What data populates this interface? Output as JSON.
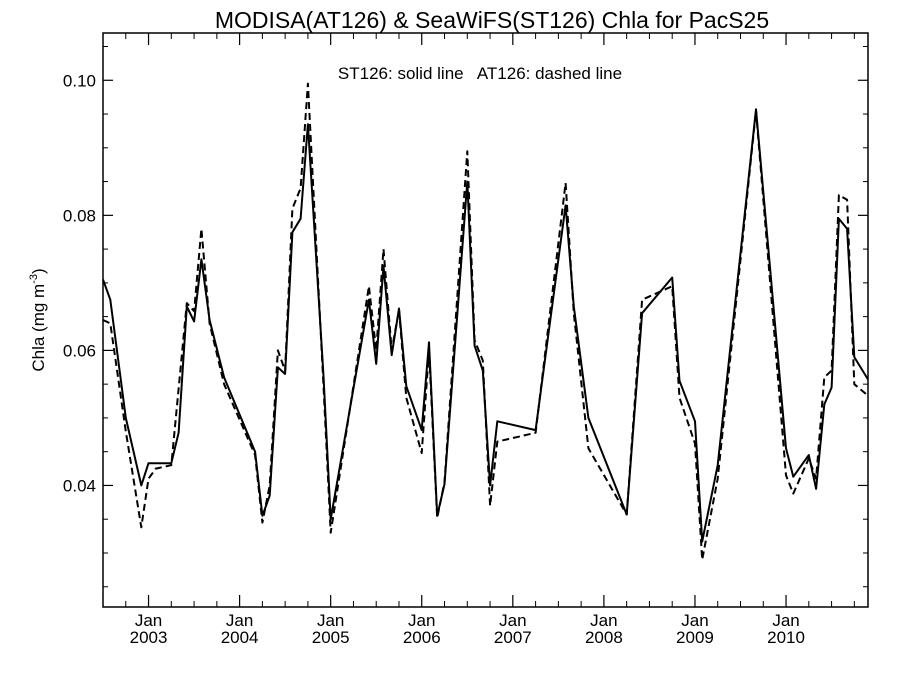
{
  "chart_data": {
    "type": "line",
    "title": "MODISA(AT126) & SeaWiFS(ST126)  Chla for PacS25",
    "annotation": "ST126: solid line   AT126: dashed line",
    "ylabel": "Chla (mg m",
    "ylabel_sup": "-3",
    "ylabel_close": ")",
    "xlabel": "",
    "xlim": [
      2002.5,
      2010.9
    ],
    "ylim": [
      0.022,
      0.107
    ],
    "grid": false,
    "legend": "none",
    "yticks": [
      0.04,
      0.06,
      0.08,
      0.1
    ],
    "ytick_labels": [
      "0.04",
      "0.06",
      "0.08",
      "0.10"
    ],
    "xticks": [
      {
        "x": 2003.0,
        "top": "Jan",
        "bottom": "2003"
      },
      {
        "x": 2004.0,
        "top": "Jan",
        "bottom": "2004"
      },
      {
        "x": 2005.0,
        "top": "Jan",
        "bottom": "2005"
      },
      {
        "x": 2006.0,
        "top": "Jan",
        "bottom": "2006"
      },
      {
        "x": 2007.0,
        "top": "Jan",
        "bottom": "2007"
      },
      {
        "x": 2008.0,
        "top": "Jan",
        "bottom": "2008"
      },
      {
        "x": 2009.0,
        "top": "Jan",
        "bottom": "2009"
      },
      {
        "x": 2010.0,
        "top": "Jan",
        "bottom": "2010"
      }
    ],
    "colors": {
      "axis": "#000000",
      "line": "#000000",
      "background": "#ffffff"
    },
    "series": [
      {
        "style": "solid",
        "x": [
          2002.5,
          2002.58,
          2002.75,
          2002.92,
          2003.0,
          2003.08,
          2003.25,
          2003.33,
          2003.42,
          2003.5,
          2003.58,
          2003.67,
          2003.83,
          2004.17,
          2004.25,
          2004.33,
          2004.42,
          2004.5,
          2004.58,
          2004.67,
          2004.75,
          2004.92,
          2005.0,
          2005.42,
          2005.5,
          2005.58,
          2005.67,
          2005.75,
          2005.83,
          2006.0,
          2006.08,
          2006.17,
          2006.25,
          2006.5,
          2006.58,
          2006.67,
          2006.75,
          2006.83,
          2007.25,
          2007.58,
          2007.67,
          2007.83,
          2008.25,
          2008.42,
          2008.75,
          2008.83,
          2009.0,
          2009.08,
          2009.25,
          2009.67,
          2010.0,
          2010.08,
          2010.25,
          2010.33,
          2010.42,
          2010.5,
          2010.58,
          2010.67,
          2010.75,
          2010.9
        ],
        "y": [
          0.0705,
          0.0675,
          0.05,
          0.04,
          0.0433,
          0.0433,
          0.0433,
          0.0478,
          0.0665,
          0.0643,
          0.0735,
          0.0645,
          0.056,
          0.045,
          0.0355,
          0.0385,
          0.0575,
          0.0565,
          0.0775,
          0.0795,
          0.0935,
          0.0565,
          0.035,
          0.0675,
          0.058,
          0.0725,
          0.0593,
          0.0662,
          0.0547,
          0.0482,
          0.0612,
          0.0355,
          0.0402,
          0.085,
          0.0607,
          0.057,
          0.04,
          0.0495,
          0.0482,
          0.0815,
          0.0665,
          0.05,
          0.0357,
          0.0655,
          0.0708,
          0.0555,
          0.0495,
          0.0317,
          0.043,
          0.0957,
          0.0455,
          0.0413,
          0.0445,
          0.0395,
          0.052,
          0.0545,
          0.0795,
          0.078,
          0.059,
          0.0557
        ]
      },
      {
        "style": "dashed",
        "x": [
          2002.5,
          2002.58,
          2002.75,
          2002.92,
          2003.0,
          2003.08,
          2003.25,
          2003.42,
          2003.5,
          2003.58,
          2003.67,
          2003.83,
          2004.17,
          2004.25,
          2004.33,
          2004.42,
          2004.5,
          2004.58,
          2004.67,
          2004.75,
          2004.92,
          2005.0,
          2005.42,
          2005.5,
          2005.58,
          2005.67,
          2005.75,
          2005.83,
          2006.0,
          2006.08,
          2006.17,
          2006.25,
          2006.5,
          2006.58,
          2006.67,
          2006.75,
          2006.83,
          2007.25,
          2007.58,
          2007.67,
          2007.83,
          2008.25,
          2008.42,
          2008.75,
          2008.83,
          2009.0,
          2009.08,
          2009.25,
          2009.67,
          2010.0,
          2010.08,
          2010.25,
          2010.33,
          2010.42,
          2010.5,
          2010.58,
          2010.67,
          2010.75,
          2010.9
        ],
        "y": [
          0.0645,
          0.064,
          0.048,
          0.0338,
          0.041,
          0.0425,
          0.043,
          0.067,
          0.0658,
          0.078,
          0.064,
          0.055,
          0.0445,
          0.0345,
          0.04,
          0.06,
          0.057,
          0.081,
          0.084,
          0.0995,
          0.055,
          0.033,
          0.0695,
          0.06,
          0.075,
          0.06,
          0.066,
          0.053,
          0.0448,
          0.06,
          0.0352,
          0.0405,
          0.0895,
          0.0615,
          0.0585,
          0.037,
          0.0465,
          0.0478,
          0.0848,
          0.0655,
          0.0455,
          0.0357,
          0.0675,
          0.0695,
          0.053,
          0.0462,
          0.029,
          0.041,
          0.0955,
          0.0415,
          0.0388,
          0.044,
          0.041,
          0.056,
          0.057,
          0.083,
          0.0823,
          0.055,
          0.0533
        ]
      }
    ]
  }
}
